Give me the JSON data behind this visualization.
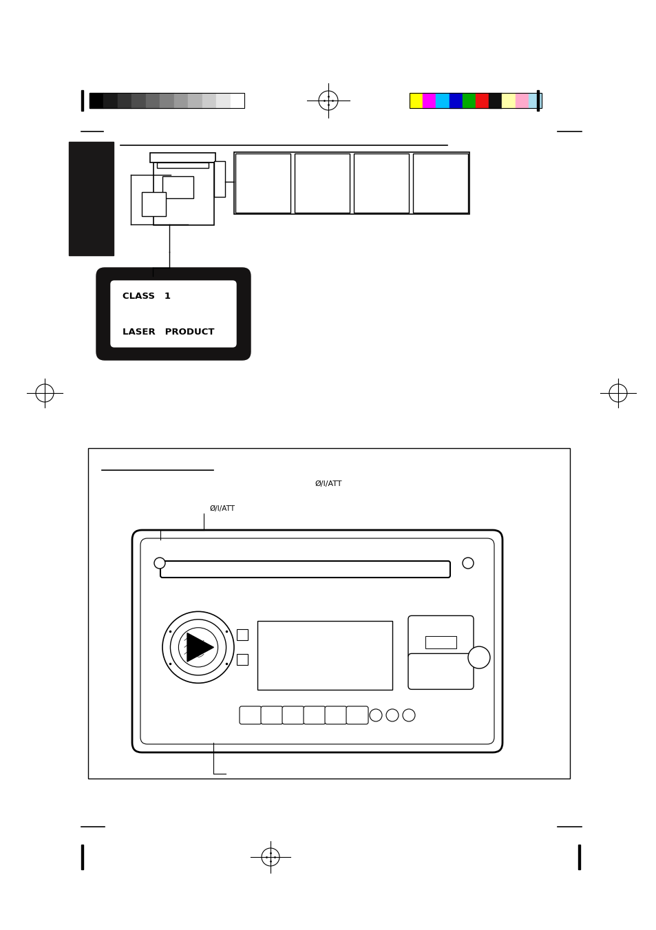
{
  "bg_color": "#ffffff",
  "page_width": 9.54,
  "page_height": 13.51,
  "grayscale_colors": [
    "#000000",
    "#1a1a1a",
    "#333333",
    "#4d4d4d",
    "#666666",
    "#808080",
    "#999999",
    "#b3b3b3",
    "#cccccc",
    "#e6e6e6",
    "#ffffff"
  ],
  "color_bars": [
    "#ffff00",
    "#ff00ff",
    "#00bfff",
    "#0000cd",
    "#00aa00",
    "#ee1111",
    "#111111",
    "#ffffaa",
    "#ffaacc",
    "#aaddee"
  ],
  "class_label_line1": "CLASS   1",
  "class_label_line2": "LASER   PRODUCT",
  "att_label_top": "Ø/I/ATT",
  "att_label_callout": "Ø/I/ATT"
}
